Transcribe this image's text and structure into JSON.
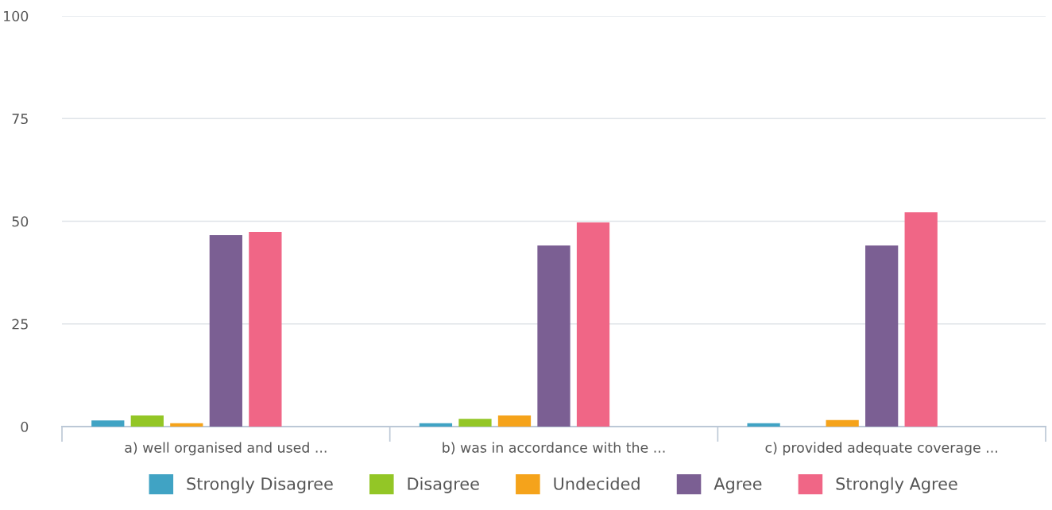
{
  "chart_data": {
    "type": "bar",
    "categories": [
      "a) well organised and used ...",
      "b) was in accordance with the ...",
      "c) provided adequate coverage ..."
    ],
    "series": [
      {
        "name": "Strongly Disagree",
        "color": "#40a3c4",
        "values": [
          1.5,
          0.8,
          0.8
        ]
      },
      {
        "name": "Disagree",
        "color": "#93c626",
        "values": [
          2.7,
          1.9,
          0
        ]
      },
      {
        "name": "Undecided",
        "color": "#f5a31b",
        "values": [
          0.8,
          2.7,
          1.6
        ]
      },
      {
        "name": "Agree",
        "color": "#7b5f93",
        "values": [
          46.6,
          44.1,
          44.1
        ]
      },
      {
        "name": "Strongly Agree",
        "color": "#f06686",
        "values": [
          47.4,
          49.7,
          52.2
        ]
      }
    ],
    "ylim": [
      0,
      100
    ],
    "yticks": [
      0,
      25,
      50,
      75,
      100
    ],
    "grid": "y",
    "legend": "bottom"
  }
}
